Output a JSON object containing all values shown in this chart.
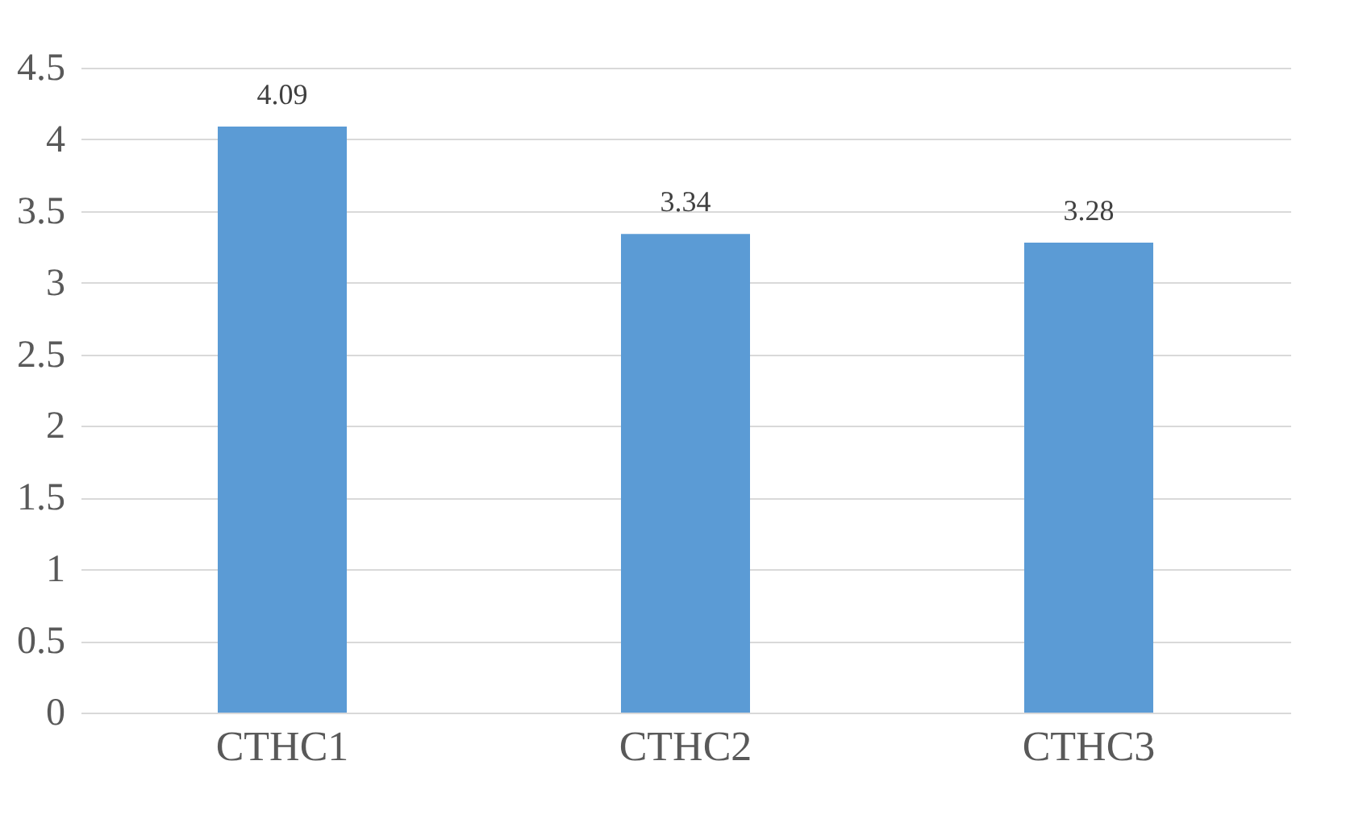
{
  "chart_data": {
    "type": "bar",
    "categories": [
      "CTHC1",
      "CTHC2",
      "CTHC3"
    ],
    "values": [
      4.09,
      3.34,
      3.28
    ],
    "color": "#5b9bd5",
    "ylim": [
      0,
      4.5
    ],
    "yticks": [
      0,
      0.5,
      1,
      1.5,
      2,
      2.5,
      3,
      3.5,
      4,
      4.5
    ],
    "grid": "y",
    "data_labels": true
  }
}
